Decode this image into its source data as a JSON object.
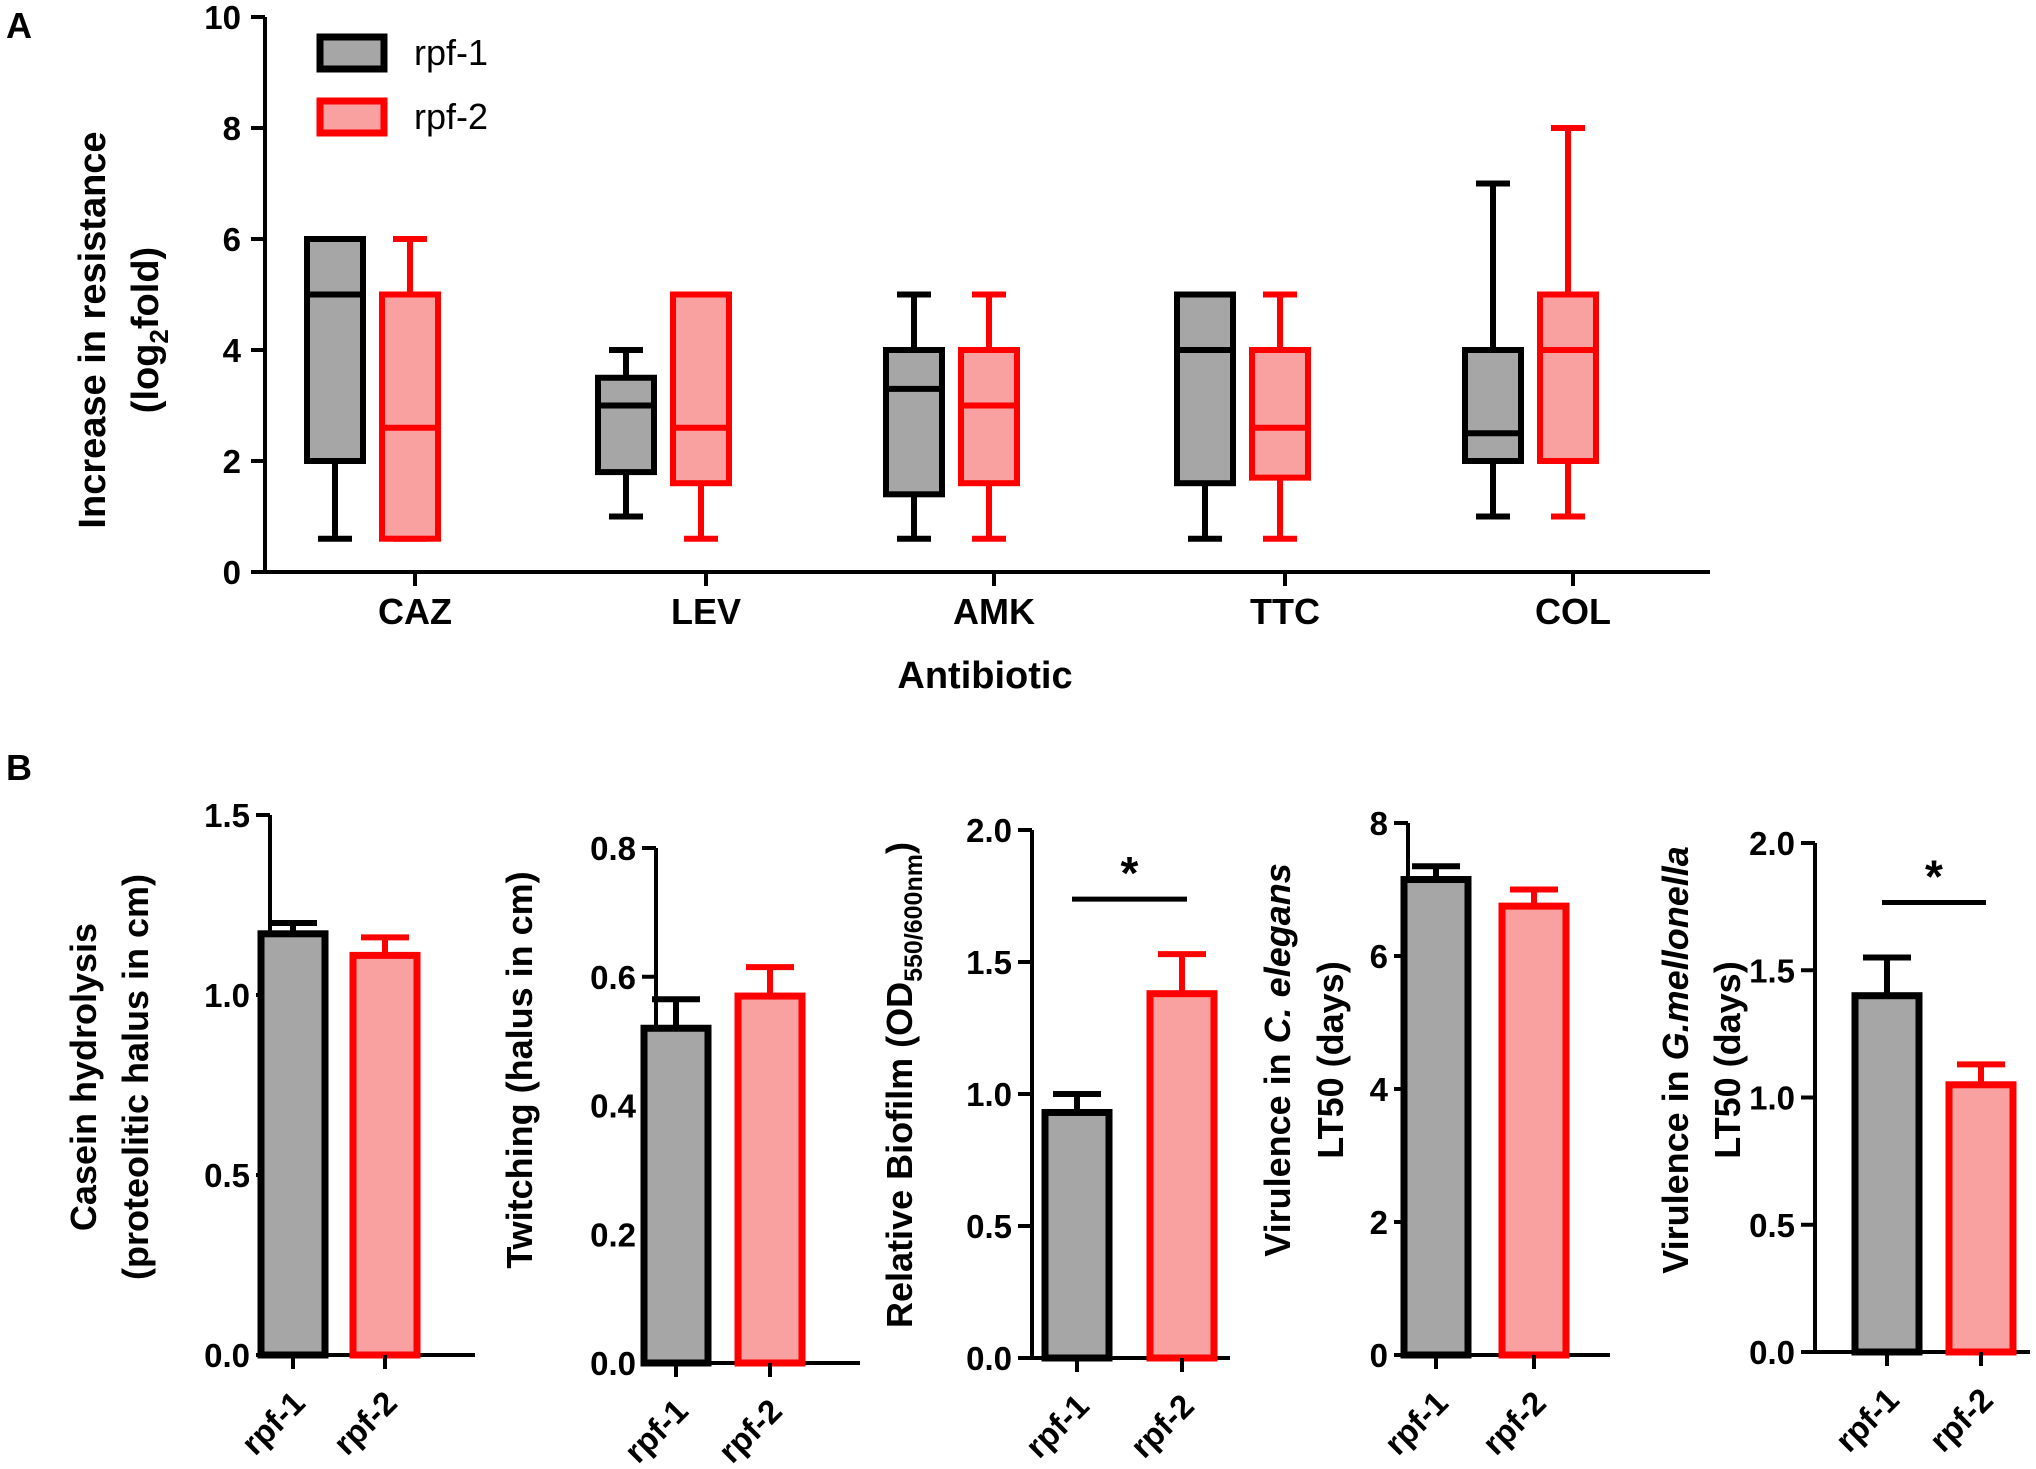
{
  "panel_labels": {
    "a": "A",
    "b": "B"
  },
  "chart_data": [
    {
      "id": "A",
      "type": "box",
      "title": "",
      "xlabel": "Antibiotic",
      "ylabel_line1": "Increase in resistance",
      "ylabel_line2_pre": "(log",
      "ylabel_line2_sub": "2",
      "ylabel_line2_post": "fold)",
      "ylim": [
        0,
        10
      ],
      "yticks": [
        0,
        2,
        4,
        6,
        8,
        10
      ],
      "legend": [
        {
          "name": "rpf-1",
          "fill": "#a6a6a6",
          "stroke": "#000000"
        },
        {
          "name": "rpf-2",
          "fill": "#f9a0a0",
          "stroke": "#ff0000"
        }
      ],
      "categories": [
        "CAZ",
        "LEV",
        "AMK",
        "TTC",
        "COL"
      ],
      "series": [
        {
          "name": "rpf-1",
          "boxes": [
            {
              "min": 0.6,
              "q1": 2.0,
              "median": 5.0,
              "q3": 6.0,
              "max": 6.0
            },
            {
              "min": 1.0,
              "q1": 1.8,
              "median": 3.0,
              "q3": 3.5,
              "max": 4.0
            },
            {
              "min": 0.6,
              "q1": 1.4,
              "median": 3.3,
              "q3": 4.0,
              "max": 5.0
            },
            {
              "min": 0.6,
              "q1": 1.6,
              "median": 4.0,
              "q3": 5.0,
              "max": 5.0
            },
            {
              "min": 1.0,
              "q1": 2.0,
              "median": 2.5,
              "q3": 4.0,
              "max": 7.0
            }
          ]
        },
        {
          "name": "rpf-2",
          "boxes": [
            {
              "min": 0.6,
              "q1": 0.6,
              "median": 2.6,
              "q3": 5.0,
              "max": 6.0
            },
            {
              "min": 0.6,
              "q1": 1.6,
              "median": 2.6,
              "q3": 5.0,
              "max": 5.0
            },
            {
              "min": 0.6,
              "q1": 1.6,
              "median": 3.0,
              "q3": 4.0,
              "max": 5.0
            },
            {
              "min": 0.6,
              "q1": 1.7,
              "median": 2.6,
              "q3": 4.0,
              "max": 5.0
            },
            {
              "min": 1.0,
              "q1": 2.0,
              "median": 4.0,
              "q3": 5.0,
              "max": 8.0
            }
          ]
        }
      ]
    },
    {
      "id": "B1",
      "type": "bar",
      "ylabel_lines": [
        "Casein hydrolysis",
        "(proteolitic halus in cm)"
      ],
      "ylim": [
        0,
        1.5
      ],
      "yticks": [
        "0.0",
        "0.5",
        "1.0",
        "1.5"
      ],
      "categories": [
        "rpf-1",
        "rpf-2"
      ],
      "values": [
        1.17,
        1.11
      ],
      "errors": [
        0.03,
        0.05
      ],
      "significance": ""
    },
    {
      "id": "B2",
      "type": "bar",
      "ylabel_lines": [
        "Twitching (halus in cm)"
      ],
      "ylim": [
        0,
        0.8
      ],
      "yticks": [
        "0.0",
        "0.2",
        "0.4",
        "0.6",
        "0.8"
      ],
      "categories": [
        "rpf-1",
        "rpf-2"
      ],
      "values": [
        0.52,
        0.57
      ],
      "errors": [
        0.045,
        0.045
      ],
      "significance": ""
    },
    {
      "id": "B3",
      "type": "bar",
      "ylabel_pre": "Relative Biofilm (OD",
      "ylabel_sub": "550/600nm",
      "ylabel_post": ")",
      "ylim": [
        0,
        2.0
      ],
      "yticks": [
        "0.0",
        "0.5",
        "1.0",
        "1.5",
        "2.0"
      ],
      "categories": [
        "rpf-1",
        "rpf-2"
      ],
      "values": [
        0.93,
        1.38
      ],
      "errors": [
        0.07,
        0.15
      ],
      "significance": "*"
    },
    {
      "id": "B4",
      "type": "bar",
      "ylabel_line1_pre": "Virulence in ",
      "ylabel_line1_ital": "C. elegans",
      "ylabel_line2": "LT50 (days)",
      "ylim": [
        0,
        8
      ],
      "yticks": [
        "0",
        "2",
        "4",
        "6",
        "8"
      ],
      "categories": [
        "rpf-1",
        "rpf-2"
      ],
      "values": [
        7.15,
        6.75
      ],
      "errors": [
        0.2,
        0.25
      ],
      "significance": ""
    },
    {
      "id": "B5",
      "type": "bar",
      "ylabel_line1_pre": "Virulence in  ",
      "ylabel_line1_ital": "G.mellonella",
      "ylabel_line2": "LT50 (days)",
      "ylim": [
        0,
        2.0
      ],
      "yticks": [
        "0.0",
        "0.5",
        "1.0",
        "1.5",
        "2.0"
      ],
      "categories": [
        "rpf-1",
        "rpf-2"
      ],
      "values": [
        1.4,
        1.05
      ],
      "errors": [
        0.15,
        0.08
      ],
      "significance": "*"
    }
  ]
}
